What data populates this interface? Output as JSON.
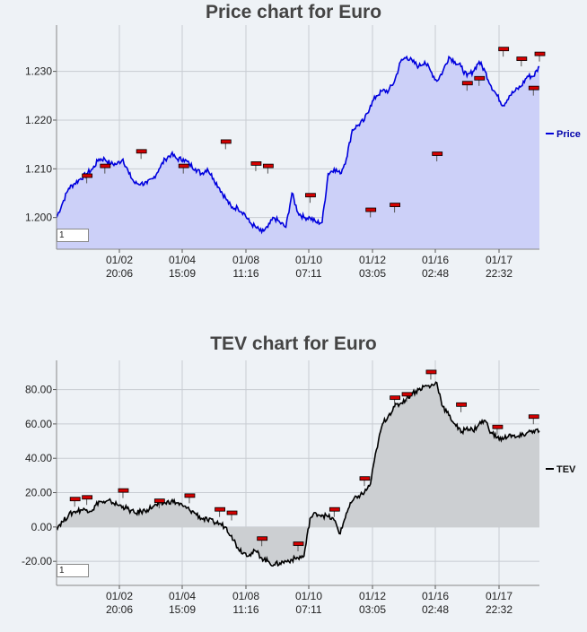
{
  "charts": [
    {
      "id": "price",
      "title": "Price chart for Euro",
      "legend": "Price",
      "zoom_value": "1",
      "colors": {
        "line": "#0000dd",
        "fill": "#ccd0f8",
        "marker": "#d40000"
      },
      "y_ticks": [
        "1.200",
        "1.210",
        "1.220",
        "1.230"
      ],
      "x_ticks": [
        {
          "date": "01/02",
          "time": "20:06"
        },
        {
          "date": "01/04",
          "time": "15:09"
        },
        {
          "date": "01/08",
          "time": "11:16"
        },
        {
          "date": "01/10",
          "time": "07:11"
        },
        {
          "date": "01/12",
          "time": "03:05"
        },
        {
          "date": "01/16",
          "time": "02:48"
        },
        {
          "date": "01/17",
          "time": "22:32"
        }
      ]
    },
    {
      "id": "tev",
      "title": "TEV chart for Euro",
      "legend": "TEV",
      "zoom_value": "1",
      "colors": {
        "line": "#000000",
        "fill": "#cccfd2",
        "marker": "#d40000"
      },
      "y_ticks": [
        "-20.00",
        "0.00",
        "20.00",
        "40.00",
        "60.00",
        "80.00"
      ],
      "x_ticks": [
        {
          "date": "01/02",
          "time": "20:06"
        },
        {
          "date": "01/04",
          "time": "15:09"
        },
        {
          "date": "01/08",
          "time": "11:16"
        },
        {
          "date": "01/10",
          "time": "07:11"
        },
        {
          "date": "01/12",
          "time": "03:05"
        },
        {
          "date": "01/16",
          "time": "02:48"
        },
        {
          "date": "01/17",
          "time": "22:32"
        }
      ]
    }
  ],
  "chart_data": [
    {
      "type": "area",
      "title": "Price chart for Euro",
      "xlabel": "",
      "ylabel": "",
      "ylim": [
        1.1935,
        1.2395
      ],
      "x_tick_labels": [
        "01/02 20:06",
        "01/04 15:09",
        "01/08 11:16",
        "01/10 07:11",
        "01/12 03:05",
        "01/16 02:48",
        "01/17 22:32"
      ],
      "grid": true,
      "legend_position": "right",
      "series": [
        {
          "name": "Price",
          "x": [
            0,
            1,
            2,
            3,
            4,
            5,
            6,
            7,
            8,
            9,
            10,
            11,
            12,
            13,
            14,
            15,
            16,
            17,
            18,
            19,
            20,
            21,
            22,
            23,
            24,
            25,
            26,
            27,
            28,
            29,
            30,
            31,
            32,
            33,
            34,
            35,
            36,
            37,
            38,
            39,
            40,
            41,
            42,
            43,
            44,
            45,
            46,
            47,
            48,
            49,
            50,
            51,
            52,
            53,
            54,
            55,
            56,
            57,
            58,
            59,
            60,
            61,
            62,
            63,
            64,
            65,
            66,
            67,
            68,
            69,
            70,
            71,
            72,
            73,
            74,
            75,
            76,
            77,
            78,
            79,
            80
          ],
          "y": [
            1.2,
            1.203,
            1.206,
            1.207,
            1.208,
            1.209,
            1.21,
            1.212,
            1.212,
            1.211,
            1.211,
            1.212,
            1.209,
            1.207,
            1.207,
            1.207,
            1.208,
            1.21,
            1.212,
            1.213,
            1.212,
            1.212,
            1.211,
            1.21,
            1.209,
            1.21,
            1.208,
            1.206,
            1.204,
            1.202,
            1.202,
            1.201,
            1.199,
            1.198,
            1.197,
            1.198,
            1.2,
            1.199,
            1.198,
            1.205,
            1.201,
            1.2,
            1.2,
            1.199,
            1.199,
            1.209,
            1.21,
            1.209,
            1.212,
            1.218,
            1.219,
            1.22,
            1.223,
            1.225,
            1.226,
            1.226,
            1.228,
            1.232,
            1.233,
            1.232,
            1.231,
            1.232,
            1.23,
            1.228,
            1.23,
            1.233,
            1.232,
            1.231,
            1.229,
            1.23,
            1.232,
            1.23,
            1.227,
            1.225,
            1.223,
            1.225,
            1.226,
            1.227,
            1.229,
            1.229,
            1.231
          ]
        }
      ],
      "markers": [
        {
          "x": 5,
          "y": 1.2085
        },
        {
          "x": 8,
          "y": 1.2105
        },
        {
          "x": 14,
          "y": 1.2135
        },
        {
          "x": 21,
          "y": 1.2105
        },
        {
          "x": 28,
          "y": 1.2155
        },
        {
          "x": 33,
          "y": 1.211
        },
        {
          "x": 35,
          "y": 1.2105
        },
        {
          "x": 42,
          "y": 1.2045
        },
        {
          "x": 52,
          "y": 1.2015
        },
        {
          "x": 56,
          "y": 1.2025
        },
        {
          "x": 63,
          "y": 1.213
        },
        {
          "x": 68,
          "y": 1.2275
        },
        {
          "x": 70,
          "y": 1.2285
        },
        {
          "x": 74,
          "y": 1.2345
        },
        {
          "x": 77,
          "y": 1.2325
        },
        {
          "x": 79,
          "y": 1.2265
        },
        {
          "x": 80,
          "y": 1.2335
        }
      ]
    },
    {
      "type": "area",
      "title": "TEV chart for Euro",
      "xlabel": "",
      "ylabel": "",
      "ylim": [
        -34,
        97
      ],
      "x_tick_labels": [
        "01/02 20:06",
        "01/04 15:09",
        "01/08 11:16",
        "01/10 07:11",
        "01/12 03:05",
        "01/16 02:48",
        "01/17 22:32"
      ],
      "grid": true,
      "legend_position": "right",
      "series": [
        {
          "name": "TEV",
          "x": [
            0,
            1,
            2,
            3,
            4,
            5,
            6,
            7,
            8,
            9,
            10,
            11,
            12,
            13,
            14,
            15,
            16,
            17,
            18,
            19,
            20,
            21,
            22,
            23,
            24,
            25,
            26,
            27,
            28,
            29,
            30,
            31,
            32,
            33,
            34,
            35,
            36,
            37,
            38,
            39,
            40,
            41,
            42,
            43,
            44,
            45,
            46,
            47,
            48,
            49,
            50,
            51,
            52,
            53,
            54,
            55,
            56,
            57,
            58,
            59,
            60,
            61,
            62,
            63,
            64,
            65,
            66,
            67,
            68,
            69,
            70,
            71,
            72,
            73,
            74,
            75,
            76,
            77,
            78,
            79,
            80
          ],
          "y": [
            0,
            3,
            7,
            9,
            10,
            10,
            10,
            15,
            14,
            15,
            13,
            12,
            10,
            8,
            9,
            10,
            12,
            13,
            14,
            15,
            14,
            12,
            10,
            8,
            5,
            4,
            3,
            2,
            0,
            -5,
            -12,
            -15,
            -16,
            -14,
            -18,
            -20,
            -22,
            -21,
            -20,
            -19,
            -18,
            -17,
            5,
            8,
            7,
            6,
            4,
            -4,
            8,
            15,
            18,
            20,
            25,
            45,
            60,
            65,
            70,
            72,
            75,
            78,
            80,
            82,
            82,
            84,
            70,
            65,
            60,
            55,
            58,
            56,
            60,
            62,
            55,
            52,
            51,
            54,
            52,
            53,
            55,
            56,
            56
          ]
        }
      ],
      "markers": [
        {
          "x": 3,
          "y": 16
        },
        {
          "x": 5,
          "y": 17
        },
        {
          "x": 11,
          "y": 21
        },
        {
          "x": 17,
          "y": 15
        },
        {
          "x": 22,
          "y": 18
        },
        {
          "x": 27,
          "y": 10
        },
        {
          "x": 29,
          "y": 8
        },
        {
          "x": 34,
          "y": -7
        },
        {
          "x": 40,
          "y": -10
        },
        {
          "x": 46,
          "y": 10
        },
        {
          "x": 51,
          "y": 28
        },
        {
          "x": 56,
          "y": 75
        },
        {
          "x": 58,
          "y": 77
        },
        {
          "x": 62,
          "y": 90
        },
        {
          "x": 67,
          "y": 71
        },
        {
          "x": 73,
          "y": 58
        },
        {
          "x": 79,
          "y": 64
        }
      ]
    }
  ]
}
